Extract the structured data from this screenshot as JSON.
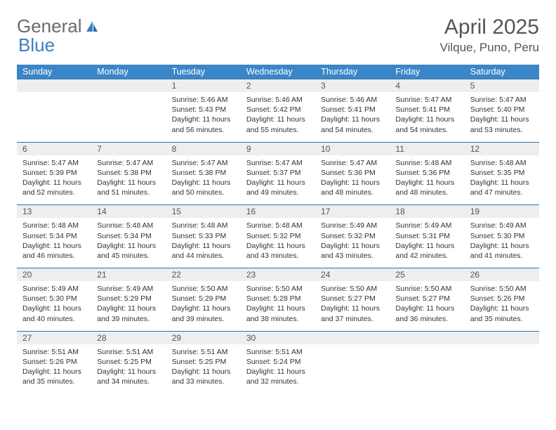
{
  "branding": {
    "logo_text_1": "General",
    "logo_text_2": "Blue",
    "logo_color_gray": "#6a6a6a",
    "logo_color_blue": "#3a7fc4"
  },
  "header": {
    "month_title": "April 2025",
    "location": "Vilque, Puno, Peru"
  },
  "colors": {
    "header_row_bg": "#3a86c8",
    "header_row_fg": "#ffffff",
    "daynum_bg": "#eceeef",
    "daynum_border": "#3a6fa0",
    "text": "#333333",
    "muted": "#555555",
    "page_bg": "#ffffff"
  },
  "weekdays": [
    "Sunday",
    "Monday",
    "Tuesday",
    "Wednesday",
    "Thursday",
    "Friday",
    "Saturday"
  ],
  "calendar": {
    "type": "table",
    "start_weekday_index": 2,
    "days": [
      {
        "n": 1,
        "sunrise": "5:46 AM",
        "sunset": "5:43 PM",
        "daylight": "11 hours and 56 minutes."
      },
      {
        "n": 2,
        "sunrise": "5:46 AM",
        "sunset": "5:42 PM",
        "daylight": "11 hours and 55 minutes."
      },
      {
        "n": 3,
        "sunrise": "5:46 AM",
        "sunset": "5:41 PM",
        "daylight": "11 hours and 54 minutes."
      },
      {
        "n": 4,
        "sunrise": "5:47 AM",
        "sunset": "5:41 PM",
        "daylight": "11 hours and 54 minutes."
      },
      {
        "n": 5,
        "sunrise": "5:47 AM",
        "sunset": "5:40 PM",
        "daylight": "11 hours and 53 minutes."
      },
      {
        "n": 6,
        "sunrise": "5:47 AM",
        "sunset": "5:39 PM",
        "daylight": "11 hours and 52 minutes."
      },
      {
        "n": 7,
        "sunrise": "5:47 AM",
        "sunset": "5:38 PM",
        "daylight": "11 hours and 51 minutes."
      },
      {
        "n": 8,
        "sunrise": "5:47 AM",
        "sunset": "5:38 PM",
        "daylight": "11 hours and 50 minutes."
      },
      {
        "n": 9,
        "sunrise": "5:47 AM",
        "sunset": "5:37 PM",
        "daylight": "11 hours and 49 minutes."
      },
      {
        "n": 10,
        "sunrise": "5:47 AM",
        "sunset": "5:36 PM",
        "daylight": "11 hours and 48 minutes."
      },
      {
        "n": 11,
        "sunrise": "5:48 AM",
        "sunset": "5:36 PM",
        "daylight": "11 hours and 48 minutes."
      },
      {
        "n": 12,
        "sunrise": "5:48 AM",
        "sunset": "5:35 PM",
        "daylight": "11 hours and 47 minutes."
      },
      {
        "n": 13,
        "sunrise": "5:48 AM",
        "sunset": "5:34 PM",
        "daylight": "11 hours and 46 minutes."
      },
      {
        "n": 14,
        "sunrise": "5:48 AM",
        "sunset": "5:34 PM",
        "daylight": "11 hours and 45 minutes."
      },
      {
        "n": 15,
        "sunrise": "5:48 AM",
        "sunset": "5:33 PM",
        "daylight": "11 hours and 44 minutes."
      },
      {
        "n": 16,
        "sunrise": "5:48 AM",
        "sunset": "5:32 PM",
        "daylight": "11 hours and 43 minutes."
      },
      {
        "n": 17,
        "sunrise": "5:49 AM",
        "sunset": "5:32 PM",
        "daylight": "11 hours and 43 minutes."
      },
      {
        "n": 18,
        "sunrise": "5:49 AM",
        "sunset": "5:31 PM",
        "daylight": "11 hours and 42 minutes."
      },
      {
        "n": 19,
        "sunrise": "5:49 AM",
        "sunset": "5:30 PM",
        "daylight": "11 hours and 41 minutes."
      },
      {
        "n": 20,
        "sunrise": "5:49 AM",
        "sunset": "5:30 PM",
        "daylight": "11 hours and 40 minutes."
      },
      {
        "n": 21,
        "sunrise": "5:49 AM",
        "sunset": "5:29 PM",
        "daylight": "11 hours and 39 minutes."
      },
      {
        "n": 22,
        "sunrise": "5:50 AM",
        "sunset": "5:29 PM",
        "daylight": "11 hours and 39 minutes."
      },
      {
        "n": 23,
        "sunrise": "5:50 AM",
        "sunset": "5:28 PM",
        "daylight": "11 hours and 38 minutes."
      },
      {
        "n": 24,
        "sunrise": "5:50 AM",
        "sunset": "5:27 PM",
        "daylight": "11 hours and 37 minutes."
      },
      {
        "n": 25,
        "sunrise": "5:50 AM",
        "sunset": "5:27 PM",
        "daylight": "11 hours and 36 minutes."
      },
      {
        "n": 26,
        "sunrise": "5:50 AM",
        "sunset": "5:26 PM",
        "daylight": "11 hours and 35 minutes."
      },
      {
        "n": 27,
        "sunrise": "5:51 AM",
        "sunset": "5:26 PM",
        "daylight": "11 hours and 35 minutes."
      },
      {
        "n": 28,
        "sunrise": "5:51 AM",
        "sunset": "5:25 PM",
        "daylight": "11 hours and 34 minutes."
      },
      {
        "n": 29,
        "sunrise": "5:51 AM",
        "sunset": "5:25 PM",
        "daylight": "11 hours and 33 minutes."
      },
      {
        "n": 30,
        "sunrise": "5:51 AM",
        "sunset": "5:24 PM",
        "daylight": "11 hours and 32 minutes."
      }
    ]
  },
  "labels": {
    "sunrise_prefix": "Sunrise: ",
    "sunset_prefix": "Sunset: ",
    "daylight_prefix": "Daylight: "
  },
  "typography": {
    "month_title_fontsize": 30,
    "location_fontsize": 17,
    "weekday_fontsize": 12.5,
    "daynum_fontsize": 12,
    "cell_fontsize": 10.5
  }
}
